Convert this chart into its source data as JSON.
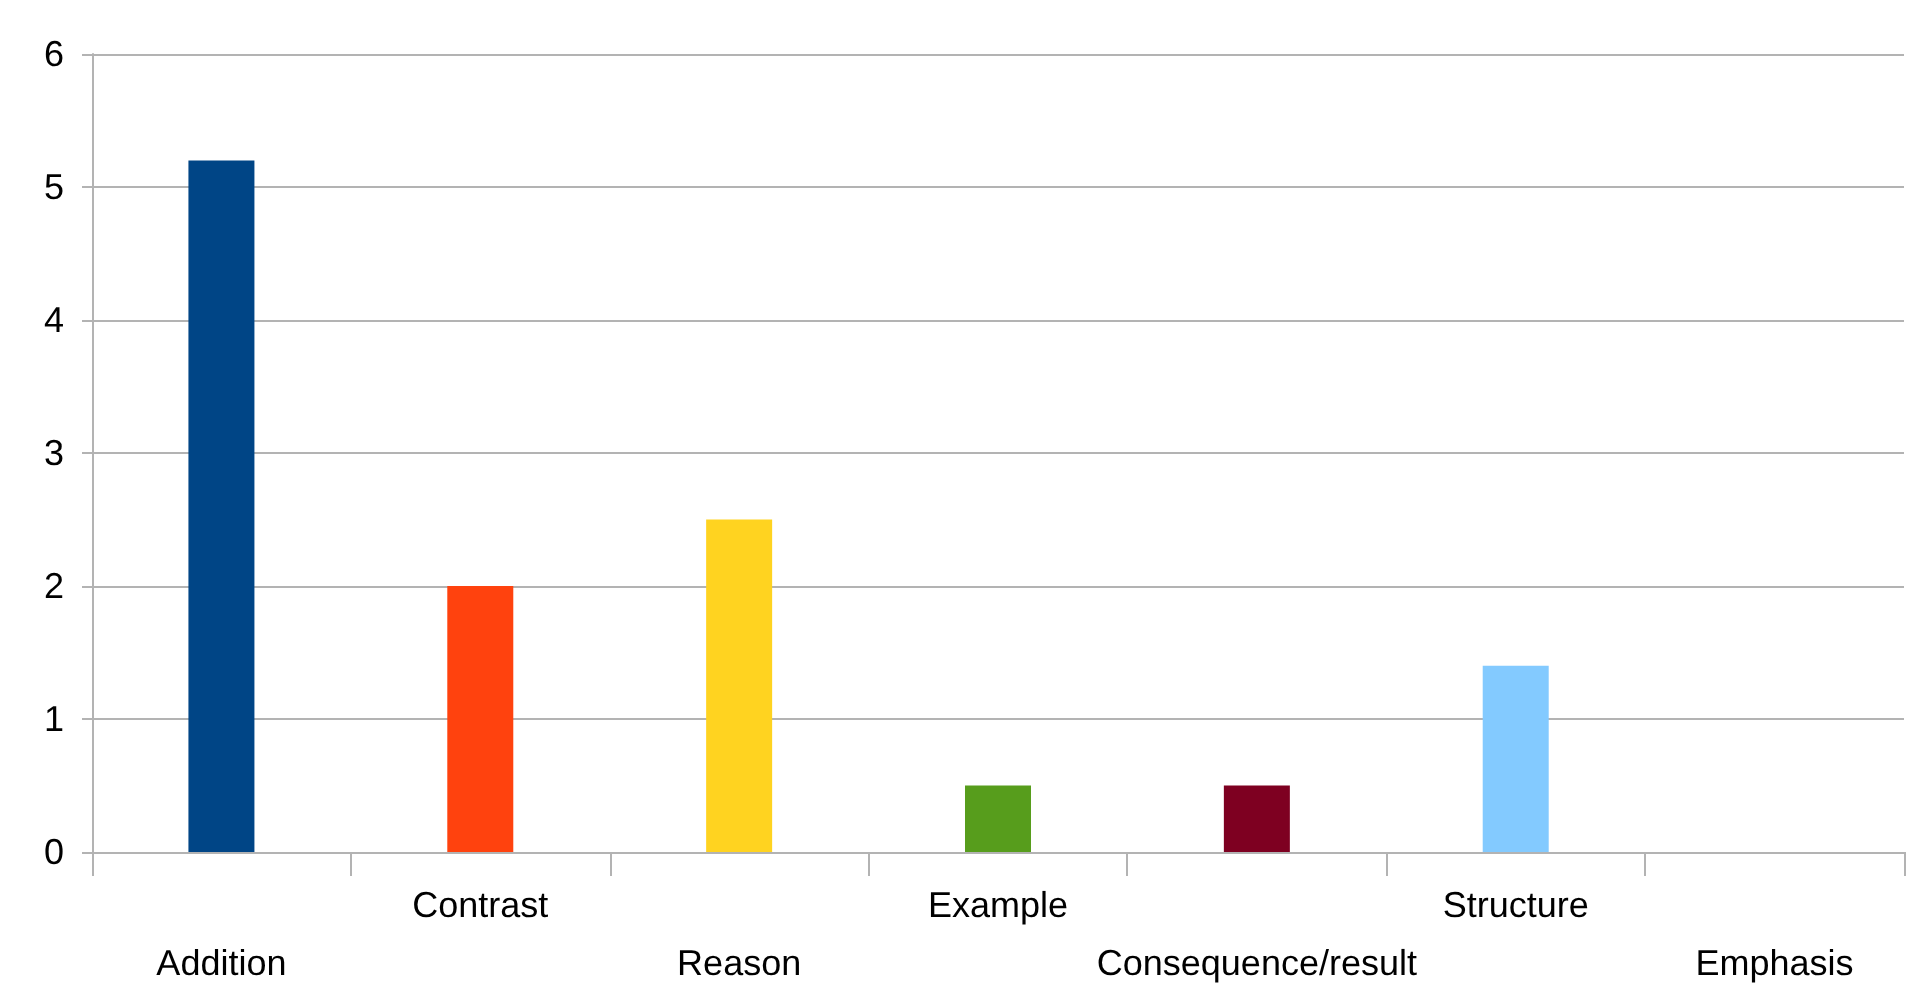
{
  "chart_data": {
    "type": "bar",
    "categories": [
      "Addition",
      "Contrast",
      "Reason",
      "Example",
      "Consequence/result",
      "Structure",
      "Emphasis"
    ],
    "values": [
      5.2,
      2,
      2.5,
      0.5,
      0.5,
      1.4,
      0
    ],
    "colors": [
      "#004586",
      "#ff420e",
      "#ffd320",
      "#579d1c",
      "#7e0021",
      "#83caff",
      "#314004"
    ],
    "ylim": [
      0,
      6
    ],
    "yticks": [
      0,
      1,
      2,
      3,
      4,
      5,
      6
    ],
    "grid": "y"
  }
}
